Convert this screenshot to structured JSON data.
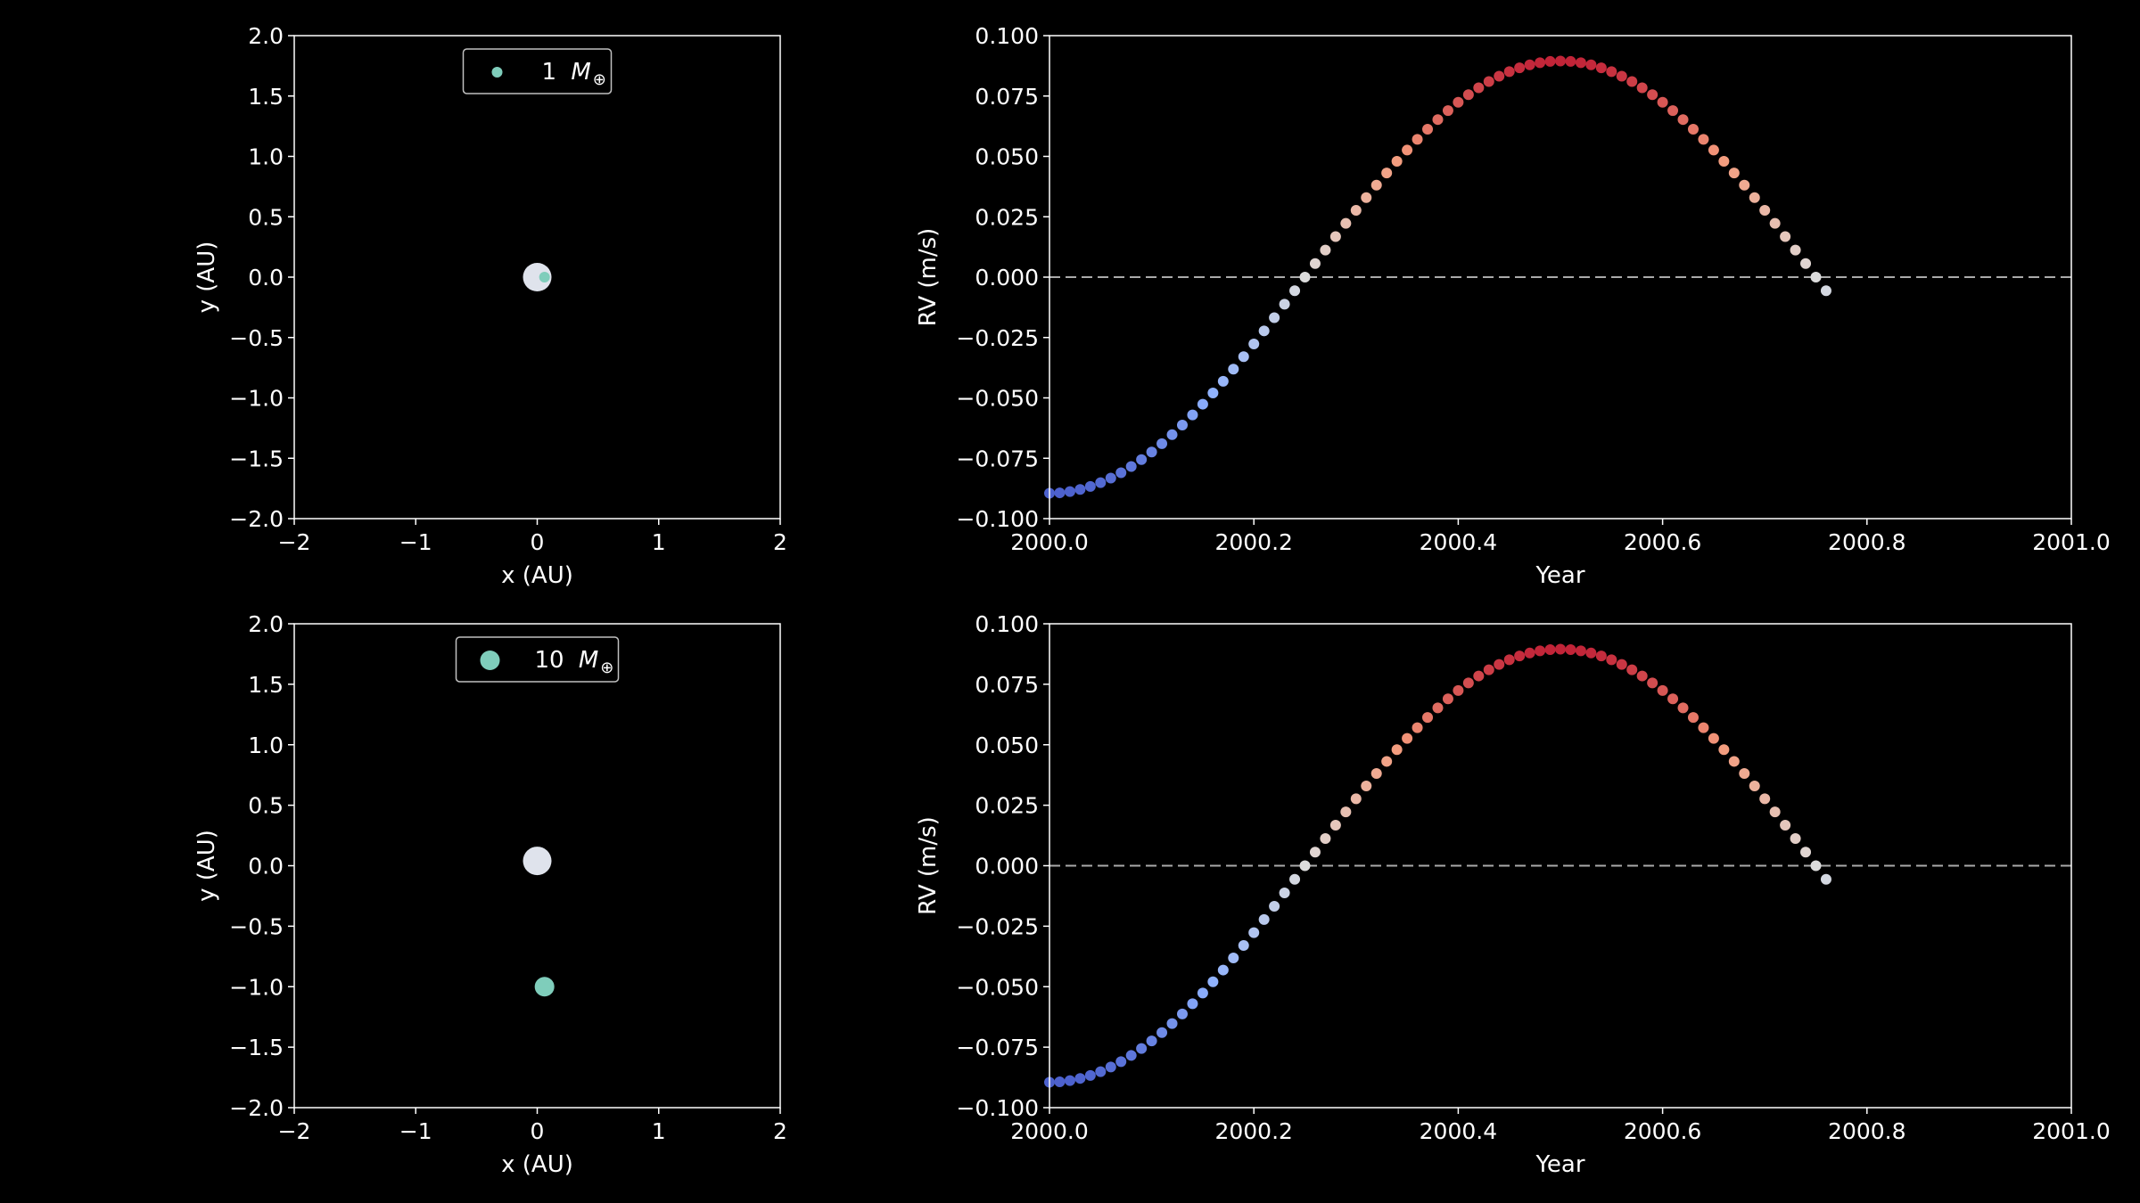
{
  "chart_data": [
    {
      "type": "scatter",
      "xlabel": "x (AU)",
      "ylabel": "y (AU)",
      "xlim": [
        -2,
        2
      ],
      "ylim": [
        -2,
        2
      ],
      "xticks": [
        "−2",
        "−1",
        "0",
        "1",
        "2"
      ],
      "yticks": [
        "2.0",
        "1.5",
        "1.0",
        "0.5",
        "0.0",
        "−0.5",
        "−1.0",
        "−1.5",
        "−2.0"
      ],
      "legend": {
        "label": "1",
        "mass_symbol": "M",
        "subscript": "⊕",
        "location": "upper-center",
        "marker_color": "#7fcdbb"
      },
      "points": [
        {
          "name": "star",
          "x": 0.0,
          "y": 0.0,
          "color": "#dfe3ec",
          "size": "large"
        },
        {
          "name": "planet",
          "x": 0.06,
          "y": 0.0,
          "color": "#7fcdbb",
          "size": "small"
        }
      ],
      "grid": false
    },
    {
      "type": "scatter",
      "xlabel": "Year",
      "ylabel": "RV (m/s)",
      "xlim": [
        2000.0,
        2001.0
      ],
      "ylim": [
        -0.1,
        0.1
      ],
      "xticks": [
        "2000.0",
        "2000.2",
        "2000.4",
        "2000.6",
        "2000.8",
        "2001.0"
      ],
      "yticks": [
        "0.100",
        "0.075",
        "0.050",
        "0.025",
        "0.000",
        "−0.025",
        "−0.050",
        "−0.075",
        "−0.100"
      ],
      "reference_line": {
        "y": 0.0,
        "style": "dashed",
        "color": "#aaaaaa"
      },
      "series": [
        {
          "x_start": 2000.0,
          "x_step": 0.01,
          "count": 77,
          "amplitude": 0.0895,
          "period_years": 1.0,
          "color_map": "coolwarm"
        }
      ],
      "grid": false
    },
    {
      "type": "scatter",
      "xlabel": "x (AU)",
      "ylabel": "y (AU)",
      "xlim": [
        -2,
        2
      ],
      "ylim": [
        -2,
        2
      ],
      "xticks": [
        "−2",
        "−1",
        "0",
        "1",
        "2"
      ],
      "yticks": [
        "2.0",
        "1.5",
        "1.0",
        "0.5",
        "0.0",
        "−0.5",
        "−1.0",
        "−1.5",
        "−2.0"
      ],
      "legend": {
        "label": "10",
        "mass_symbol": "M",
        "subscript": "⊕",
        "location": "upper-center",
        "marker_color": "#7fcdbb"
      },
      "points": [
        {
          "name": "star",
          "x": 0.0,
          "y": 0.04,
          "color": "#dfe3ec",
          "size": "large"
        },
        {
          "name": "planet",
          "x": 0.06,
          "y": -1.0,
          "color": "#7fcdbb",
          "size": "medium"
        }
      ],
      "grid": false
    },
    {
      "type": "scatter",
      "xlabel": "Year",
      "ylabel": "RV (m/s)",
      "xlim": [
        2000.0,
        2001.0
      ],
      "ylim": [
        -0.1,
        0.1
      ],
      "xticks": [
        "2000.0",
        "2000.2",
        "2000.4",
        "2000.6",
        "2000.8",
        "2001.0"
      ],
      "yticks": [
        "0.100",
        "0.075",
        "0.050",
        "0.025",
        "0.000",
        "−0.025",
        "−0.050",
        "−0.075",
        "−0.100"
      ],
      "reference_line": {
        "y": 0.0,
        "style": "dashed",
        "color": "#aaaaaa"
      },
      "series": [
        {
          "x_start": 2000.0,
          "x_step": 0.01,
          "count": 77,
          "amplitude": 0.0895,
          "period_years": 1.0,
          "color_map": "coolwarm"
        }
      ],
      "grid": false
    }
  ]
}
